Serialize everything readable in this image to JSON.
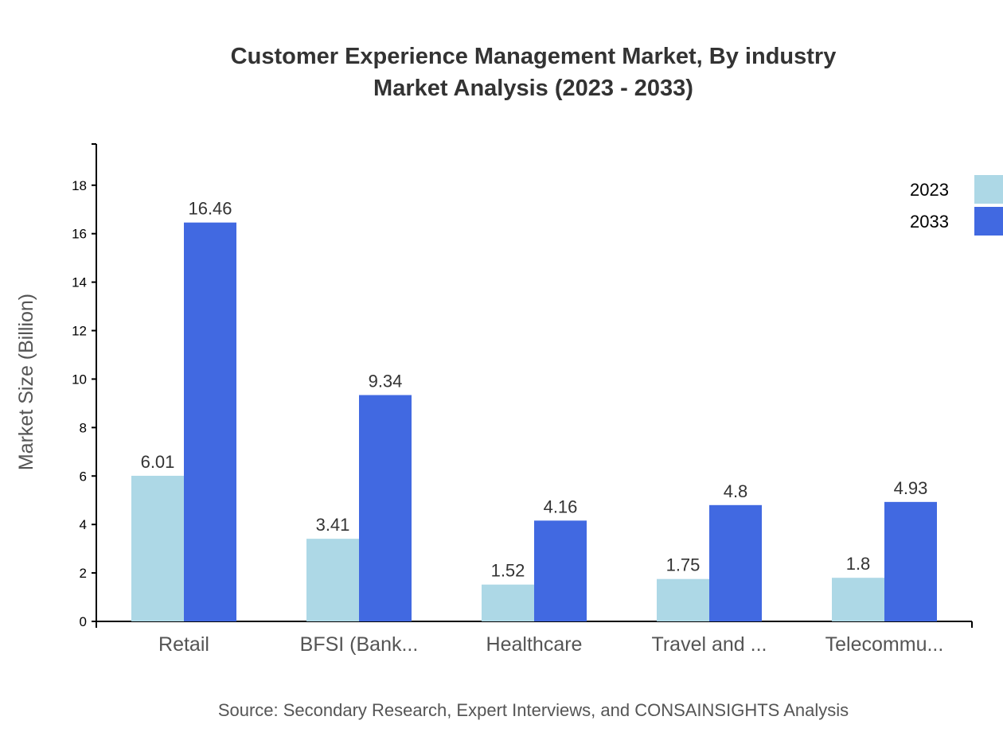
{
  "chart_data": {
    "type": "bar",
    "title": "Customer Experience Management Market, By industry",
    "subtitle": "Market Analysis (2023 - 2033)",
    "ylabel": "Market Size (Billion)",
    "xlabel": "",
    "categories": [
      "Retail",
      "BFSI (Bank...",
      "Healthcare",
      "Travel and ...",
      "Telecommu..."
    ],
    "series": [
      {
        "name": "2023",
        "color": "#add8e6",
        "values": [
          6.01,
          3.41,
          1.52,
          1.75,
          1.8
        ]
      },
      {
        "name": "2033",
        "color": "#4169e1",
        "values": [
          16.46,
          9.34,
          4.16,
          4.8,
          4.93
        ]
      }
    ],
    "ylim": [
      0,
      19.7
    ],
    "yticks": [
      0,
      2,
      4,
      6,
      8,
      10,
      12,
      14,
      16,
      18
    ],
    "grid": false,
    "legend": "top-right",
    "source": "Source: Secondary Research, Expert Interviews, and CONSAINSIGHTS Analysis"
  }
}
